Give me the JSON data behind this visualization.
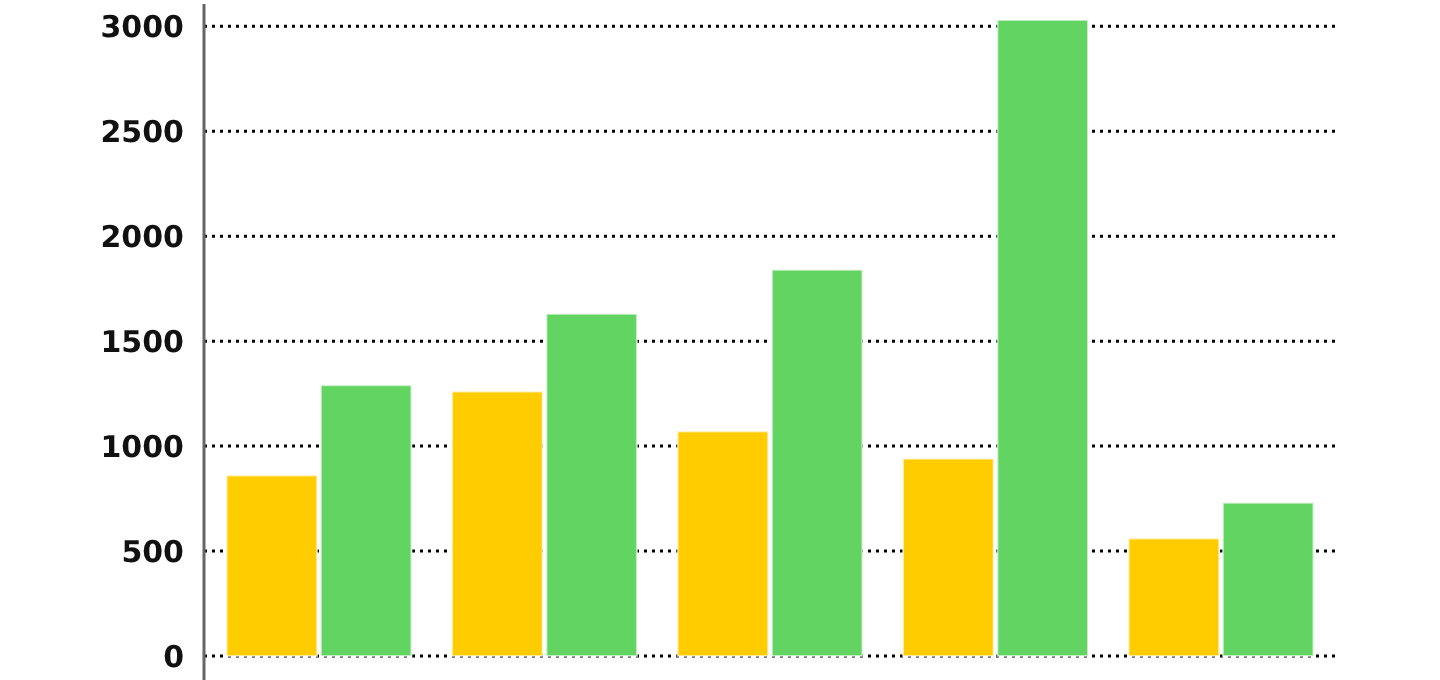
{
  "chart_data": {
    "type": "bar",
    "categories": [
      null,
      null,
      null,
      null,
      null
    ],
    "series": [
      {
        "color": "#ffcc00",
        "values": [
          860,
          1260,
          1070,
          940,
          560
        ]
      },
      {
        "color": "#62d462",
        "values": [
          1290,
          1630,
          1840,
          3030,
          730
        ]
      }
    ],
    "ylim": [
      0,
      3030
    ],
    "yticks": [
      0,
      500,
      1000,
      1500,
      2000,
      2500,
      3000
    ],
    "grid": "y"
  }
}
